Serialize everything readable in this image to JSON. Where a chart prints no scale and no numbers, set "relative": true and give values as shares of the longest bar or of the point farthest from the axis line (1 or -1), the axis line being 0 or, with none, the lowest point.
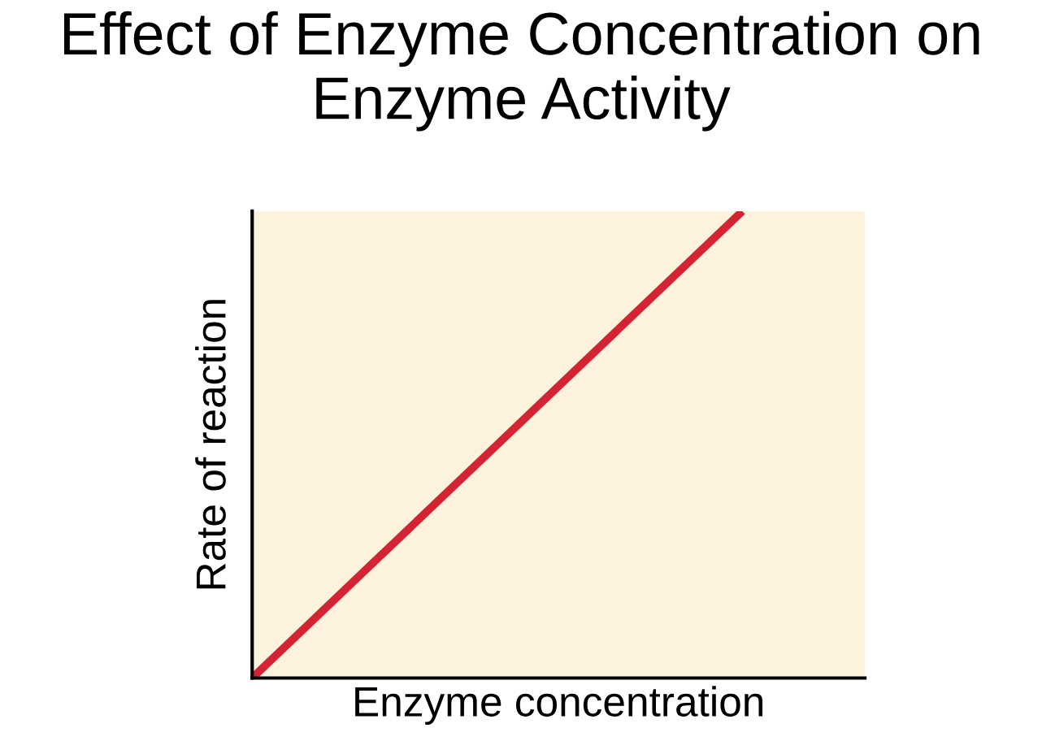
{
  "chart_data": {
    "type": "line",
    "title": "Effect of Enzyme Concentration on Enzyme Activity",
    "xlabel": "Enzyme concentration",
    "ylabel": "Rate of reaction",
    "categories": [
      null,
      null,
      null,
      null,
      null,
      null
    ],
    "series": [
      {
        "color": "#d42332",
        "values": [
          0,
          0.25,
          0.5,
          0.75,
          1,
          null
        ]
      }
    ],
    "relative": true,
    "grid": false,
    "legend": false,
    "marker": "none",
    "line_style": "solid"
  }
}
